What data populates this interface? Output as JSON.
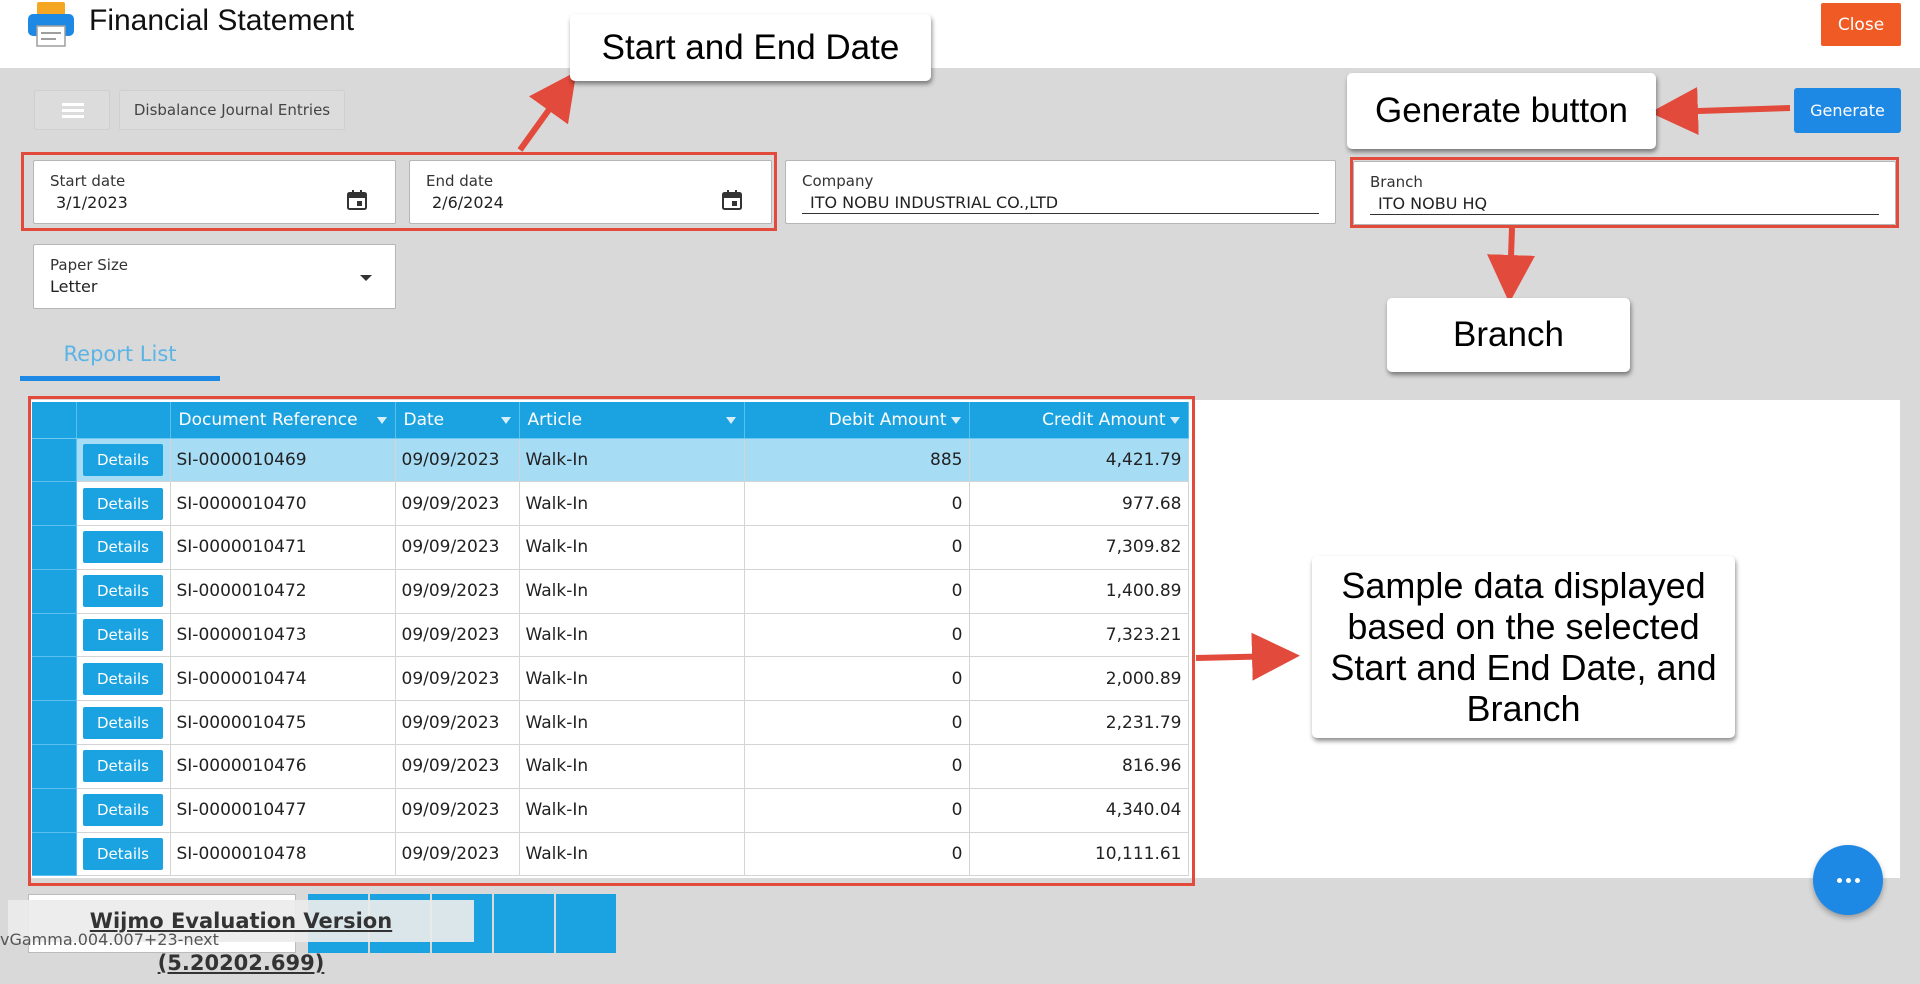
{
  "app": {
    "title": "Financial Statement",
    "close_label": "Close"
  },
  "toolbar": {
    "breadcrumb": "Disbalance Journal Entries",
    "generate_label": "Generate"
  },
  "filters": {
    "start_date": {
      "label": "Start date",
      "value": "3/1/2023"
    },
    "end_date": {
      "label": "End date",
      "value": "2/6/2024"
    },
    "company": {
      "label": "Company",
      "value": "ITO NOBU INDUSTRIAL CO.,LTD"
    },
    "branch": {
      "label": "Branch",
      "value": "ITO NOBU HQ"
    },
    "paper_size": {
      "label": "Paper Size",
      "value": "Letter"
    }
  },
  "tabs": [
    {
      "label": "Report List",
      "active": true
    }
  ],
  "grid": {
    "columns": [
      "Document Reference",
      "Date",
      "Article",
      "Debit Amount",
      "Credit Amount"
    ],
    "details_label": "Details",
    "rows": [
      {
        "ref": "SI-0000010469",
        "date": "09/09/2023",
        "article": "Walk-In",
        "debit": "885",
        "credit": "4,421.79",
        "selected": true
      },
      {
        "ref": "SI-0000010470",
        "date": "09/09/2023",
        "article": "Walk-In",
        "debit": "0",
        "credit": "977.68"
      },
      {
        "ref": "SI-0000010471",
        "date": "09/09/2023",
        "article": "Walk-In",
        "debit": "0",
        "credit": "7,309.82"
      },
      {
        "ref": "SI-0000010472",
        "date": "09/09/2023",
        "article": "Walk-In",
        "debit": "0",
        "credit": "1,400.89"
      },
      {
        "ref": "SI-0000010473",
        "date": "09/09/2023",
        "article": "Walk-In",
        "debit": "0",
        "credit": "7,323.21"
      },
      {
        "ref": "SI-0000010474",
        "date": "09/09/2023",
        "article": "Walk-In",
        "debit": "0",
        "credit": "2,000.89"
      },
      {
        "ref": "SI-0000010475",
        "date": "09/09/2023",
        "article": "Walk-In",
        "debit": "0",
        "credit": "2,231.79"
      },
      {
        "ref": "SI-0000010476",
        "date": "09/09/2023",
        "article": "Walk-In",
        "debit": "0",
        "credit": "816.96"
      },
      {
        "ref": "SI-0000010477",
        "date": "09/09/2023",
        "article": "Walk-In",
        "debit": "0",
        "credit": "4,340.04"
      },
      {
        "ref": "SI-0000010478",
        "date": "09/09/2023",
        "article": "Walk-In",
        "debit": "0",
        "credit": "10,111.61"
      }
    ]
  },
  "annotations": {
    "dates": "Start and End Date",
    "generate": "Generate button",
    "branch": "Branch",
    "sample": "Sample data displayed based on the selected Start and End Date, and Branch"
  },
  "footer": {
    "watermark": "Wijmo Evaluation Version (5.20202.699)",
    "version": "vGamma.004.007+23-next"
  },
  "colors": {
    "accent": "#1e88e5",
    "grid_header": "#1aa3e0",
    "close": "#f05a24",
    "annotation": "#e24a3c"
  }
}
